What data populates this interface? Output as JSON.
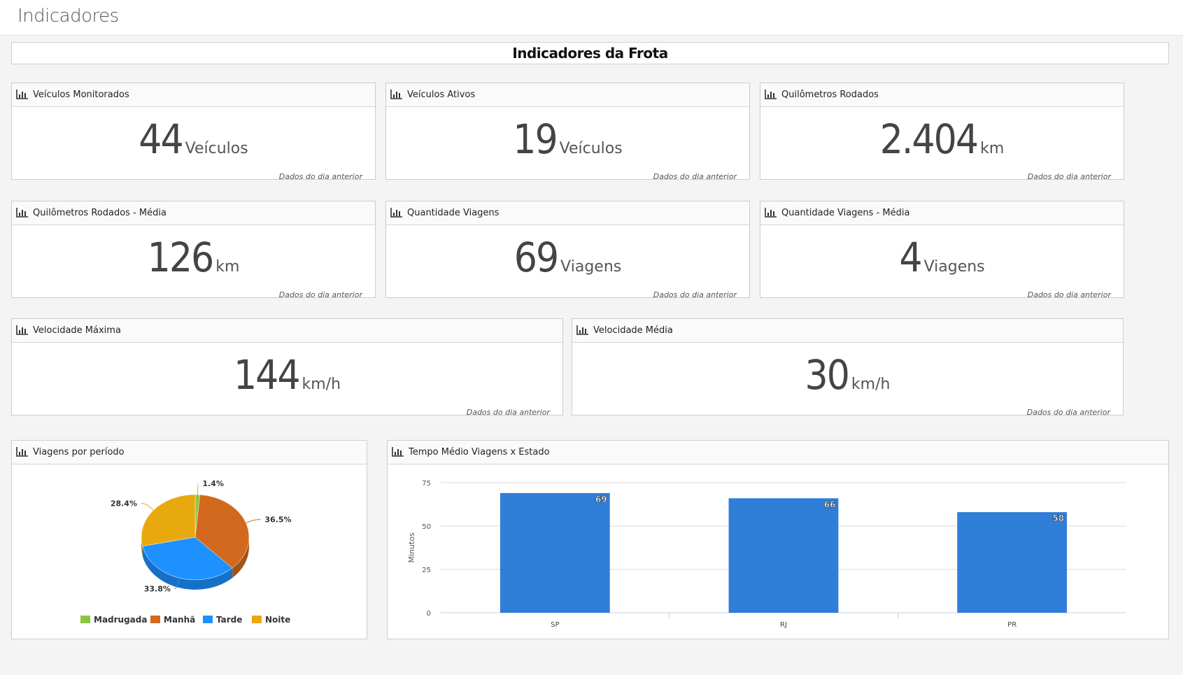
{
  "header": {
    "title": "Indicadores"
  },
  "banner": {
    "title": "Indicadores da Frota"
  },
  "note": "Dados do dia anterior",
  "kpis": [
    {
      "label": "Veículos Monitorados",
      "value": "44",
      "unit": "Veículos"
    },
    {
      "label": "Veículos Ativos",
      "value": "19",
      "unit": "Veículos"
    },
    {
      "label": "Quilômetros Rodados",
      "value": "2.404",
      "unit": "km"
    },
    {
      "label": "Quilômetros Rodados - Média",
      "value": "126",
      "unit": "km"
    },
    {
      "label": "Quantidade Viagens",
      "value": "69",
      "unit": "Viagens"
    },
    {
      "label": "Quantidade Viagens - Média",
      "value": "4",
      "unit": "Viagens"
    },
    {
      "label": "Velocidade Máxima",
      "value": "144",
      "unit": "km/h"
    },
    {
      "label": "Velocidade Média",
      "value": "30",
      "unit": "km/h"
    }
  ],
  "pie_panel": {
    "title": "Viagens por período"
  },
  "bar_panel": {
    "title": "Tempo Médio Viagens x Estado"
  },
  "icon": "bar-chart-icon",
  "chart_data": [
    {
      "type": "pie",
      "title": "",
      "slices": [
        {
          "label": "Madrugada",
          "value": 1.4,
          "display": "1.4%",
          "color": "#8cc63f"
        },
        {
          "label": "Manhã",
          "value": 36.5,
          "display": "36.5%",
          "color": "#d2691e"
        },
        {
          "label": "Tarde",
          "value": 33.8,
          "display": "33.8%",
          "color": "#1e90ff"
        },
        {
          "label": "Noite",
          "value": 28.4,
          "display": "28.4%",
          "color": "#e8a90e"
        }
      ],
      "legend": "bottom",
      "style": "3d"
    },
    {
      "type": "bar",
      "title": "",
      "categories": [
        "SP",
        "RJ",
        "PR"
      ],
      "values": [
        69,
        66,
        58
      ],
      "ylabel": "Minutos",
      "xlabel": "",
      "ylim": [
        0,
        75
      ],
      "yticks": [
        0,
        25,
        50,
        75
      ],
      "grid": true,
      "color": "#2f7ed8"
    }
  ]
}
